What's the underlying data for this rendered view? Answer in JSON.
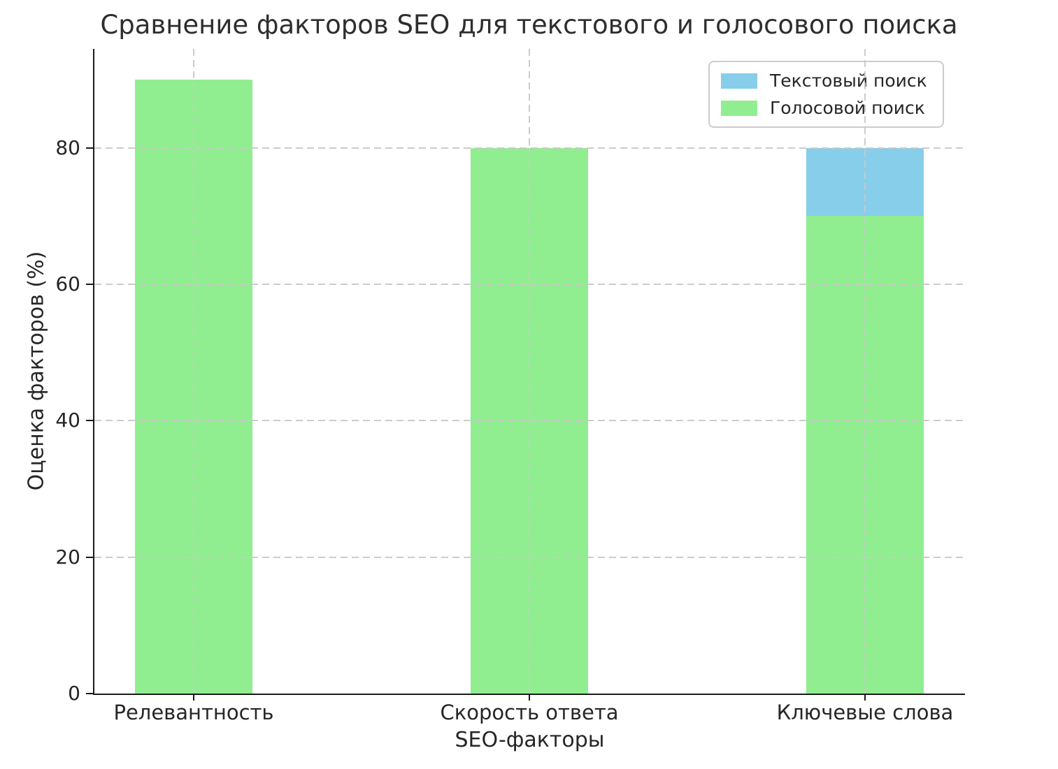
{
  "chart_data": {
    "type": "bar",
    "title": "Сравнение факторов SEO для текстового и голосового поиска",
    "xlabel": "SEO-факторы",
    "ylabel": "Оценка факторов (%)",
    "categories": [
      "Релевантность",
      "Скорость ответа",
      "Ключевые слова"
    ],
    "series": [
      {
        "name": "Текстовый поиск",
        "color": "#87CEEB",
        "values": [
          null,
          null,
          80
        ],
        "note": "drawn behind the green series; only visible on 'Ключевые слова' as the segment from 70 to 80"
      },
      {
        "name": "Голосовой поиск",
        "color": "#90EE90",
        "values": [
          90,
          80,
          70
        ]
      }
    ],
    "yticks": [
      0,
      20,
      40,
      60,
      80
    ],
    "ylim": [
      0,
      94.5
    ],
    "grid": {
      "horizontal": true,
      "vertical": true,
      "style": "dashed",
      "color": "#c9c9c9",
      "drawn_above_bars": true
    },
    "legend": {
      "position": "upper right",
      "entries": [
        "Текстовый поиск",
        "Голосовой поиск"
      ]
    }
  },
  "styles": {
    "text_color": "#262626",
    "spine_color": "#1a1a1a",
    "background": "#ffffff"
  }
}
